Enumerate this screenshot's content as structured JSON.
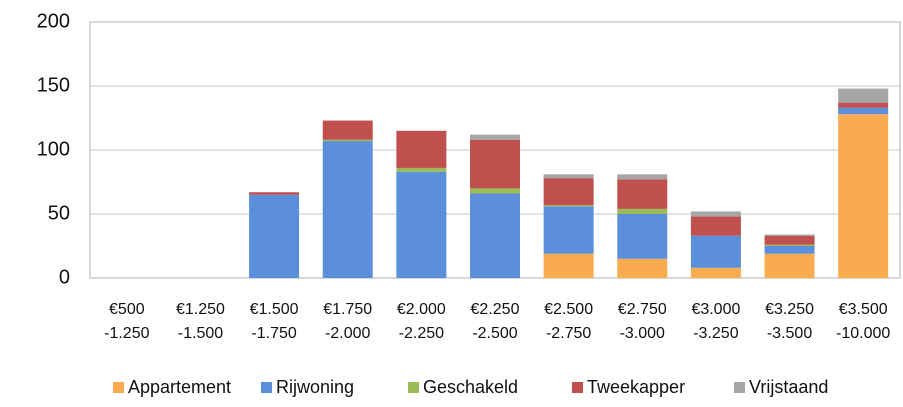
{
  "chart_data": {
    "type": "stacked_bar",
    "categories": [
      "€500\n-1.250",
      "€1.250\n-1.500",
      "€1.500\n-1.750",
      "€1.750\n-2.000",
      "€2.000\n-2.250",
      "€2.250\n-2.500",
      "€2.500\n-2.750",
      "€2.750\n-3.000",
      "€3.000\n-3.250",
      "€3.250\n-3.500",
      "€3.500\n-10.000"
    ],
    "series": [
      {
        "name": "Appartement",
        "color": "#fbab4f",
        "values": [
          0,
          0,
          0,
          0,
          0,
          0,
          19,
          15,
          8,
          19,
          128
        ]
      },
      {
        "name": "Rijwoning",
        "color": "#5b8fdb",
        "values": [
          0,
          0,
          65,
          107,
          83,
          66,
          37,
          35,
          25,
          6,
          5
        ]
      },
      {
        "name": "Geschakeld",
        "color": "#9bbb59",
        "values": [
          0,
          0,
          0,
          1,
          3,
          4,
          1,
          4,
          0,
          1,
          0
        ]
      },
      {
        "name": "Tweekapper",
        "color": "#c0504d",
        "values": [
          0,
          0,
          2,
          15,
          29,
          38,
          21,
          23,
          15,
          7,
          4
        ]
      },
      {
        "name": "Vrijstaand",
        "color": "#a6a6a6",
        "values": [
          0,
          0,
          0,
          0,
          0,
          4,
          3,
          4,
          4,
          1,
          11
        ]
      }
    ],
    "ylim": [
      0,
      200
    ],
    "yticks": [
      0,
      50,
      100,
      150,
      200
    ],
    "grid": true,
    "legend": "bottom"
  }
}
